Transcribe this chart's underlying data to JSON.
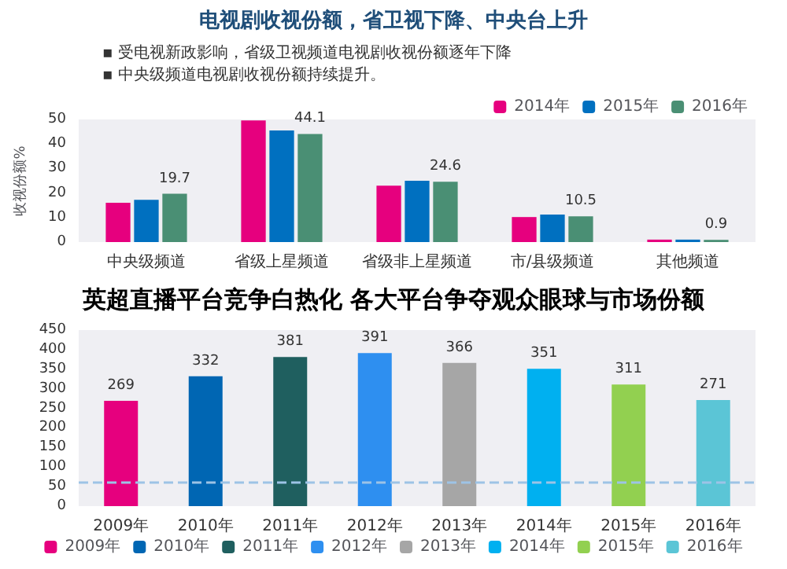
{
  "chart_data": [
    {
      "type": "bar",
      "title": "电视剧收视份额，省卫视下降、中央台上升",
      "subtitle": "▪ 受电视新政影响，省级卫视频道电视剧收视份额逐年下降\n▪ 中央级频道电视剧收视份额持续提升。",
      "ylabel": "收视份额%",
      "categories": [
        "中央级频道",
        "省级上星频道",
        "省级非上星频道",
        "市/县级频道",
        "其他频道"
      ],
      "series": [
        {
          "name": "2014年",
          "color": "#e6007e",
          "values": [
            16.0,
            49.6,
            23.0,
            10.2,
            1.0
          ]
        },
        {
          "name": "2015年",
          "color": "#0070c0",
          "values": [
            17.2,
            45.5,
            25.0,
            11.2,
            1.0
          ]
        },
        {
          "name": "2016年",
          "color": "#4a8f74",
          "values": [
            19.7,
            44.1,
            24.6,
            10.5,
            0.9
          ],
          "value_labels": [
            "19.7",
            "44.1",
            "24.6",
            "10.5",
            "0.9"
          ]
        }
      ],
      "ylim": [
        0,
        50
      ],
      "yticks": [
        0,
        10,
        20,
        30,
        40,
        50
      ],
      "legend": "top right"
    },
    {
      "type": "bar",
      "title": "英超直播平台竞争白热化 各大平台争夺观众眼球与市场份额",
      "categories": [
        "2009年",
        "2010年",
        "2011年",
        "2012年",
        "2013年",
        "2014年",
        "2015年",
        "2016年"
      ],
      "stacked": true,
      "series": [
        {
          "name": "2009年",
          "color": "#e6007e",
          "values": [
            269,
            null,
            null,
            null,
            null,
            null,
            null,
            null
          ]
        },
        {
          "name": "2010年",
          "color": "#0066b3",
          "values": [
            null,
            332,
            null,
            null,
            null,
            null,
            null,
            null
          ]
        },
        {
          "name": "2011年",
          "color": "#1f5f5f",
          "values": [
            null,
            null,
            381,
            null,
            null,
            null,
            null,
            null
          ]
        },
        {
          "name": "2012年",
          "color": "#2e8ff0",
          "values": [
            null,
            null,
            null,
            391,
            null,
            null,
            null,
            null
          ]
        },
        {
          "name": "2013年",
          "color": "#a6a6a6",
          "values": [
            null,
            null,
            null,
            null,
            366,
            null,
            null,
            null
          ]
        },
        {
          "name": "2014年",
          "color": "#00b0f0",
          "values": [
            null,
            null,
            null,
            null,
            null,
            351,
            null,
            null
          ]
        },
        {
          "name": "2015年",
          "color": "#92d050",
          "values": [
            null,
            null,
            null,
            null,
            null,
            null,
            311,
            null
          ]
        },
        {
          "name": "2016年",
          "color": "#5bc5d6",
          "values": [
            null,
            null,
            null,
            null,
            null,
            null,
            null,
            271
          ]
        }
      ],
      "ylim": [
        0,
        450
      ],
      "yticks": [
        0,
        50,
        100,
        150,
        200,
        250,
        300,
        350,
        400,
        450
      ],
      "data_labels": true,
      "legend": "bottom",
      "ref_lines": [
        {
          "axis": "y",
          "value": 60,
          "color": "#9dc3e6",
          "line_style": "dashed"
        }
      ]
    }
  ]
}
